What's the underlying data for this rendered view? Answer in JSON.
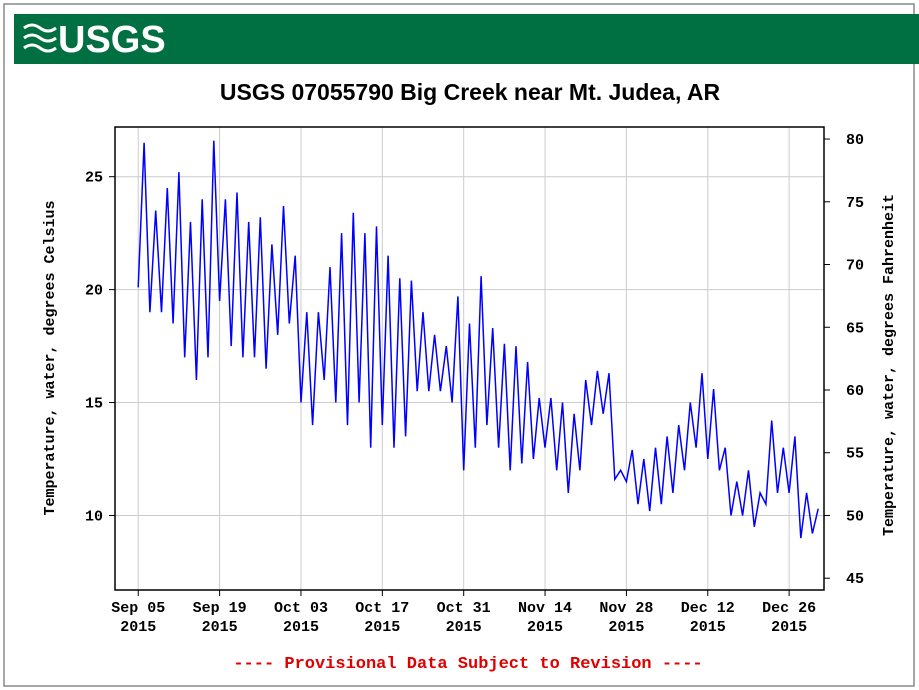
{
  "header": {
    "logo": "USGS"
  },
  "chart_data": {
    "type": "line",
    "title": "USGS 07055790 Big Creek near Mt. Judea, AR",
    "ylabel": "Temperature, water, degrees Celsius",
    "y2label": "Temperature, water, degrees Fahrenheit",
    "annotation": "---- Provisional Data Subject to Revision ----",
    "color": "#0000ff",
    "grid": true,
    "xlim": [
      "2015-09-01",
      "2016-01-01"
    ],
    "xticks": [
      {
        "value": "2015-09-05",
        "label": "Sep 05\n2015"
      },
      {
        "value": "2015-09-19",
        "label": "Sep 19\n2015"
      },
      {
        "value": "2015-10-03",
        "label": "Oct 03\n2015"
      },
      {
        "value": "2015-10-17",
        "label": "Oct 17\n2015"
      },
      {
        "value": "2015-10-31",
        "label": "Oct 31\n2015"
      },
      {
        "value": "2015-11-14",
        "label": "Nov 14\n2015"
      },
      {
        "value": "2015-11-28",
        "label": "Nov 28\n2015"
      },
      {
        "value": "2015-12-12",
        "label": "Dec 12\n2015"
      },
      {
        "value": "2015-12-26",
        "label": "Dec 26\n2015"
      }
    ],
    "ylim": [
      6.7,
      27.2
    ],
    "yticks": [
      10,
      15,
      20,
      25
    ],
    "y2lim": [
      44.06,
      80.96
    ],
    "y2ticks": [
      45,
      50,
      55,
      60,
      65,
      70,
      75,
      80
    ],
    "x": [
      "2015-09-05",
      "2015-09-06",
      "2015-09-07",
      "2015-09-08",
      "2015-09-09",
      "2015-09-10",
      "2015-09-11",
      "2015-09-12",
      "2015-09-13",
      "2015-09-14",
      "2015-09-15",
      "2015-09-16",
      "2015-09-17",
      "2015-09-18",
      "2015-09-19",
      "2015-09-20",
      "2015-09-21",
      "2015-09-22",
      "2015-09-23",
      "2015-09-24",
      "2015-09-25",
      "2015-09-26",
      "2015-09-27",
      "2015-09-28",
      "2015-09-29",
      "2015-09-30",
      "2015-10-01",
      "2015-10-02",
      "2015-10-03",
      "2015-10-04",
      "2015-10-05",
      "2015-10-06",
      "2015-10-07",
      "2015-10-08",
      "2015-10-09",
      "2015-10-10",
      "2015-10-11",
      "2015-10-12",
      "2015-10-13",
      "2015-10-14",
      "2015-10-15",
      "2015-10-16",
      "2015-10-17",
      "2015-10-18",
      "2015-10-19",
      "2015-10-20",
      "2015-10-21",
      "2015-10-22",
      "2015-10-23",
      "2015-10-24",
      "2015-10-25",
      "2015-10-26",
      "2015-10-27",
      "2015-10-28",
      "2015-10-29",
      "2015-10-30",
      "2015-10-31",
      "2015-11-01",
      "2015-11-02",
      "2015-11-03",
      "2015-11-04",
      "2015-11-05",
      "2015-11-06",
      "2015-11-07",
      "2015-11-08",
      "2015-11-09",
      "2015-11-10",
      "2015-11-11",
      "2015-11-12",
      "2015-11-13",
      "2015-11-14",
      "2015-11-15",
      "2015-11-16",
      "2015-11-17",
      "2015-11-18",
      "2015-11-19",
      "2015-11-20",
      "2015-11-21",
      "2015-11-22",
      "2015-11-23",
      "2015-11-24",
      "2015-11-25",
      "2015-11-26",
      "2015-11-27",
      "2015-11-28",
      "2015-11-29",
      "2015-11-30",
      "2015-12-01",
      "2015-12-02",
      "2015-12-03",
      "2015-12-04",
      "2015-12-05",
      "2015-12-06",
      "2015-12-07",
      "2015-12-08",
      "2015-12-09",
      "2015-12-10",
      "2015-12-11",
      "2015-12-12",
      "2015-12-13",
      "2015-12-14",
      "2015-12-15",
      "2015-12-16",
      "2015-12-17",
      "2015-12-18",
      "2015-12-19",
      "2015-12-20",
      "2015-12-21",
      "2015-12-22",
      "2015-12-23",
      "2015-12-24",
      "2015-12-25",
      "2015-12-26",
      "2015-12-27",
      "2015-12-28",
      "2015-12-29",
      "2015-12-30",
      "2015-12-31"
    ],
    "values": [
      20.1,
      26.5,
      19,
      23.5,
      19,
      24.5,
      18.5,
      25.2,
      17,
      23,
      16,
      24,
      17,
      26.6,
      19.5,
      24,
      17.5,
      24.3,
      17,
      23,
      17,
      23.2,
      16.5,
      22,
      18,
      23.7,
      18.5,
      21.5,
      15,
      19,
      14,
      19,
      16,
      21,
      15,
      22.5,
      14,
      23.4,
      15,
      22.5,
      13,
      22.8,
      14,
      21.5,
      13,
      20.5,
      13.5,
      20.4,
      15.5,
      19,
      15.5,
      18,
      15.5,
      17.5,
      15,
      19.7,
      12,
      18.5,
      13,
      20.6,
      14,
      18.3,
      13,
      17.6,
      12,
      17.5,
      12.3,
      16.8,
      12.5,
      15.2,
      13,
      15.2,
      12,
      15,
      11,
      14.5,
      12,
      16,
      14,
      16.4,
      14.5,
      16.3,
      11.6,
      12,
      11.5,
      12.9,
      10.5,
      12.5,
      10.2,
      13,
      10.5,
      13.5,
      11,
      14,
      12,
      15,
      13,
      16.3,
      12.5,
      15.6,
      12,
      13,
      10,
      11.5,
      10,
      12,
      9.5,
      11,
      10.5,
      14.2,
      11,
      13,
      11,
      13.5,
      9,
      11,
      9.2,
      10.3
    ]
  }
}
